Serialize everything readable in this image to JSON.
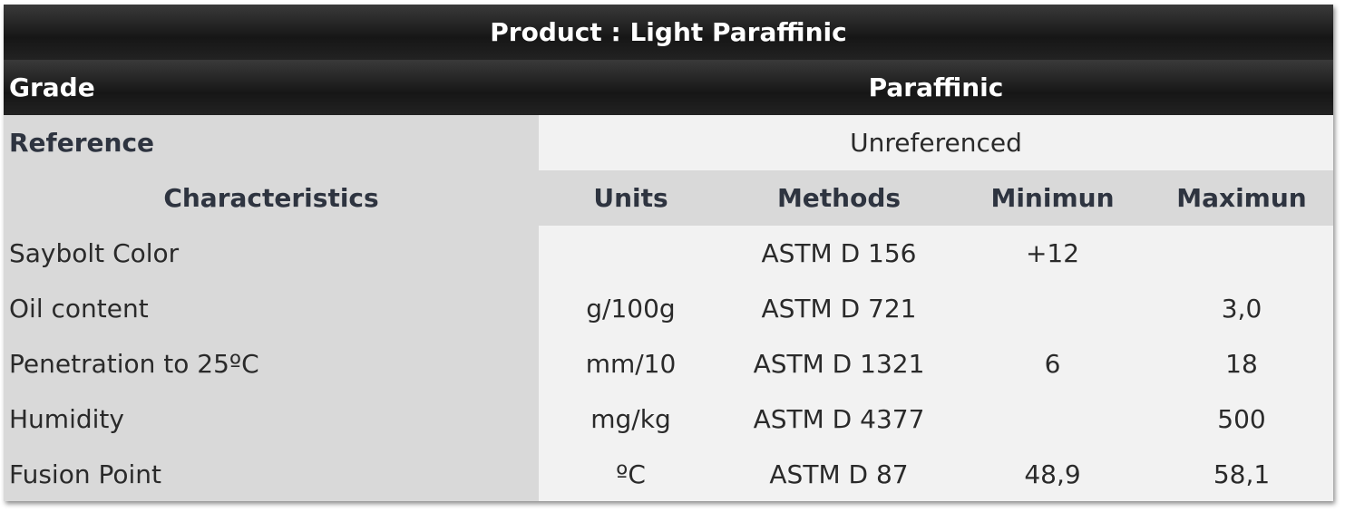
{
  "title": "Product : Light Paraffinic",
  "grade": {
    "label": "Grade",
    "value": "Paraffinic"
  },
  "reference": {
    "label": "Reference",
    "value": "Unreferenced"
  },
  "headers": {
    "characteristics": "Characteristics",
    "units": "Units",
    "methods": "Methods",
    "minimum": "Minimun",
    "maximum": "Maximun"
  },
  "rows": [
    {
      "characteristic": "Saybolt Color",
      "units": "",
      "method": "ASTM D 156",
      "min": "+12",
      "max": ""
    },
    {
      "characteristic": "Oil content",
      "units": "g/100g",
      "method": "ASTM D 721",
      "min": "",
      "max": "3,0"
    },
    {
      "characteristic": "Penetration to 25ºC",
      "units": "mm/10",
      "method": "ASTM D 1321",
      "min": "6",
      "max": "18"
    },
    {
      "characteristic": "Humidity",
      "units": "mg/kg",
      "method": "ASTM D 4377",
      "min": "",
      "max": "500"
    },
    {
      "characteristic": "Fusion Point",
      "units": "ºC",
      "method": "ASTM D 87",
      "min": "48,9",
      "max": "58,1"
    }
  ],
  "colors": {
    "header_dark": "#1c1c1c",
    "label_grey": "#d9d9d9",
    "value_light": "#f2f2f2"
  }
}
